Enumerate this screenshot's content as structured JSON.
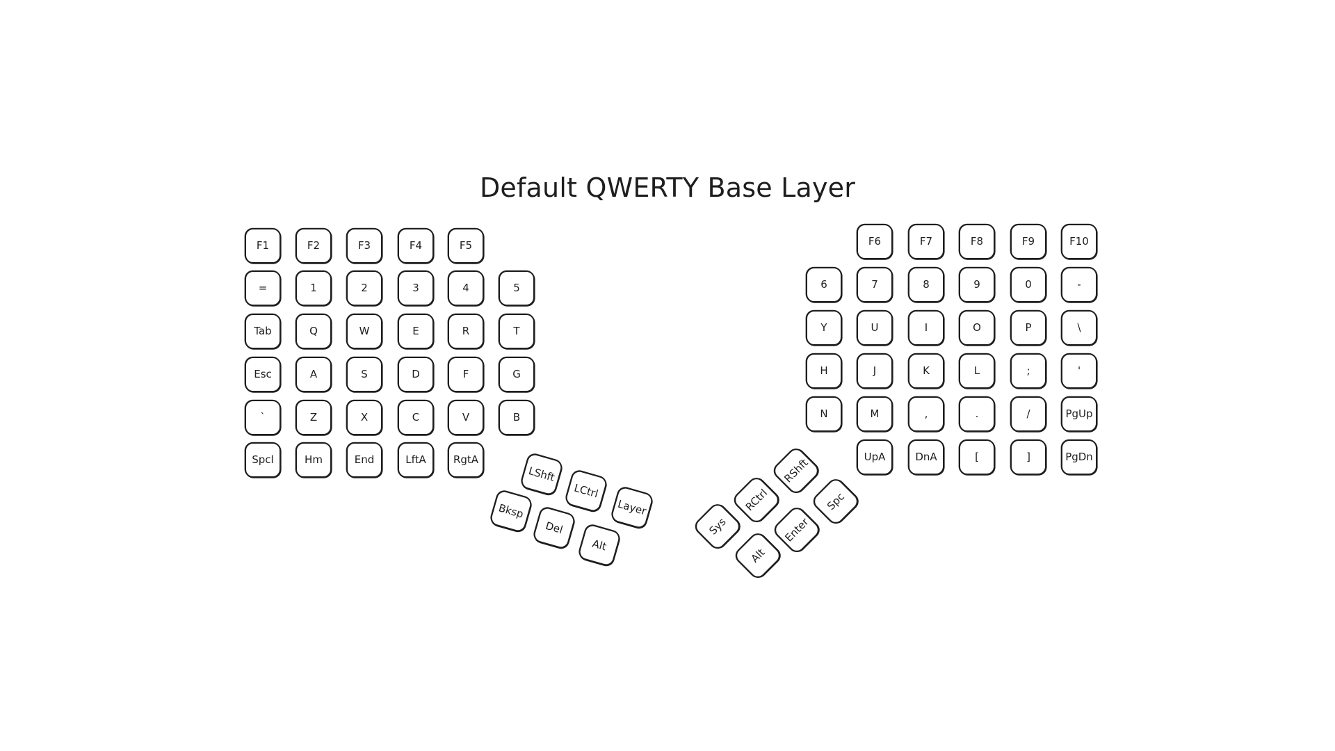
{
  "title": "Default QWERTY Base Layer",
  "keyboard": {
    "left_rows": [
      [
        "F1",
        "F2",
        "F3",
        "F4",
        "F5"
      ],
      [
        "=",
        "1",
        "2",
        "3",
        "4",
        "5"
      ],
      [
        "Tab",
        "Q",
        "W",
        "E",
        "R",
        "T"
      ],
      [
        "Esc",
        "A",
        "S",
        "D",
        "F",
        "G"
      ],
      [
        "`",
        "Z",
        "X",
        "C",
        "V",
        "B"
      ],
      [
        "Spcl",
        "Hm",
        "End",
        "LftA",
        "RgtA"
      ]
    ],
    "left_thumb": [
      "LShft",
      "LCtrl",
      "Layer",
      "Bksp",
      "Del",
      "Alt"
    ],
    "right_rows": [
      [
        "F6",
        "F7",
        "F8",
        "F9",
        "F10"
      ],
      [
        "6",
        "7",
        "8",
        "9",
        "0",
        "-"
      ],
      [
        "Y",
        "U",
        "I",
        "O",
        "P",
        "\\"
      ],
      [
        "H",
        "J",
        "K",
        "L",
        ";",
        "'"
      ],
      [
        "N",
        "M",
        ",",
        ".",
        "/",
        "PgUp"
      ],
      [
        "UpA",
        "DnA",
        "[",
        "]",
        "PgDn"
      ]
    ],
    "right_thumb": [
      "RShft",
      "RCtrl",
      "Sys",
      "Spc",
      "Enter",
      "Alt"
    ]
  }
}
